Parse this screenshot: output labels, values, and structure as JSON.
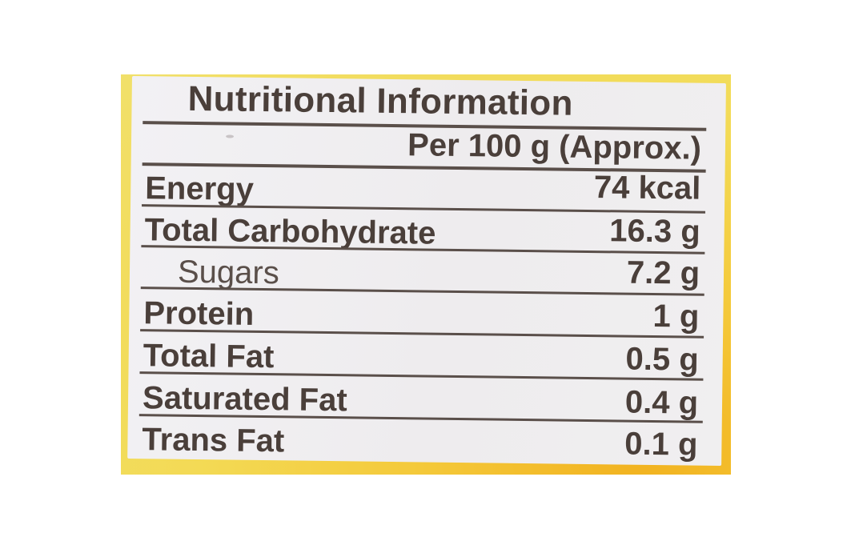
{
  "label": {
    "title": "Nutritional Information",
    "basis": "Per 100 g (Approx.)",
    "rows": [
      {
        "nutrient": "Energy",
        "amount": "74 kcal"
      },
      {
        "nutrient": "Total Carbohydrate",
        "amount": "16.3 g"
      },
      {
        "nutrient": "Sugars",
        "amount": "7.2 g"
      },
      {
        "nutrient": "Protein",
        "amount": "1 g"
      },
      {
        "nutrient": "Total Fat",
        "amount": "0.5 g"
      },
      {
        "nutrient": "Saturated Fat",
        "amount": "0.4 g"
      },
      {
        "nutrient": "Trans Fat",
        "amount": "0.1 g"
      }
    ]
  },
  "colors": {
    "ink": "#4a3f3a",
    "label_background": "#efeef0",
    "package_yellow": "#f3d54a"
  }
}
